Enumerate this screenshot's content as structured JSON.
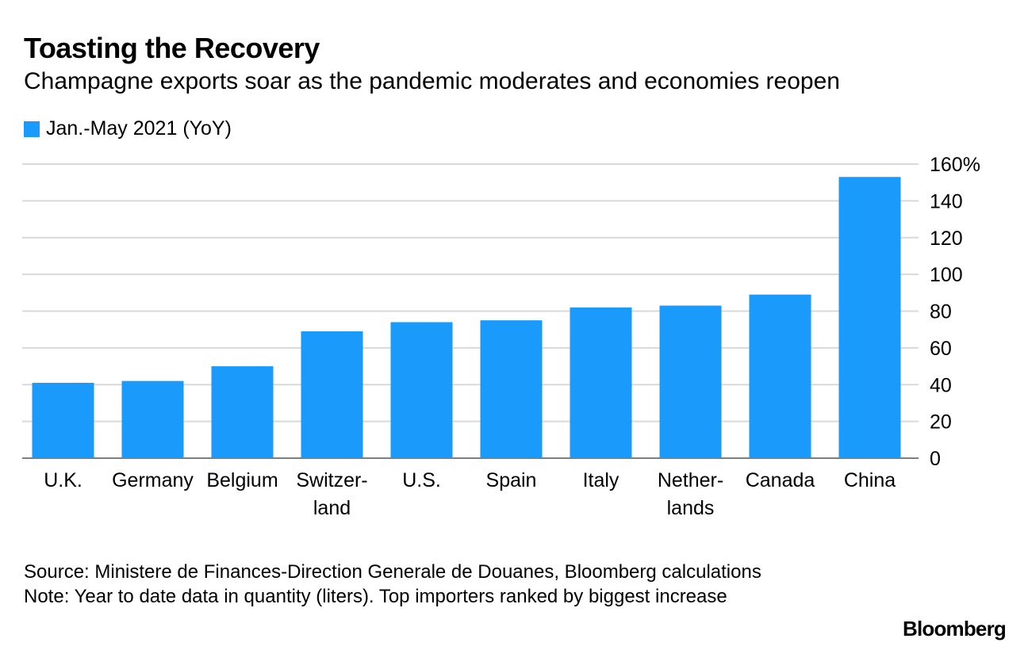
{
  "header": {
    "title": "Toasting the Recovery",
    "subtitle": "Champagne exports soar as the pandemic moderates and economies reopen"
  },
  "legend": {
    "label": "Jan.-May 2021 (YoY)",
    "color": "#1a9bfc"
  },
  "chart_data": {
    "type": "bar",
    "categories": [
      "U.K.",
      "Germany",
      "Belgium",
      "Switzer-\nland",
      "U.S.",
      "Spain",
      "Italy",
      "Nether-\nlands",
      "Canada",
      "China"
    ],
    "series": [
      {
        "name": "Jan.-May 2021 (YoY)",
        "values": [
          41,
          42,
          50,
          69,
          74,
          75,
          82,
          83,
          89,
          153
        ]
      }
    ],
    "ylim": [
      0,
      160
    ],
    "yticks": [
      0,
      20,
      40,
      60,
      80,
      100,
      120,
      140,
      160
    ],
    "ytick_labels": [
      "0",
      "20",
      "40",
      "60",
      "80",
      "100",
      "120",
      "140",
      "160%"
    ],
    "y_axis_position": "right",
    "grid": true,
    "legend_position": "top-left",
    "bar_color": "#1a9bfc",
    "grid_color": "#d9d9d9"
  },
  "footer": {
    "source": "Source: Ministere de Finances-Direction Generale de Douanes, Bloomberg calculations",
    "note": "Note: Year to date data in quantity (liters). Top importers ranked by biggest increase"
  },
  "brand": "Bloomberg"
}
